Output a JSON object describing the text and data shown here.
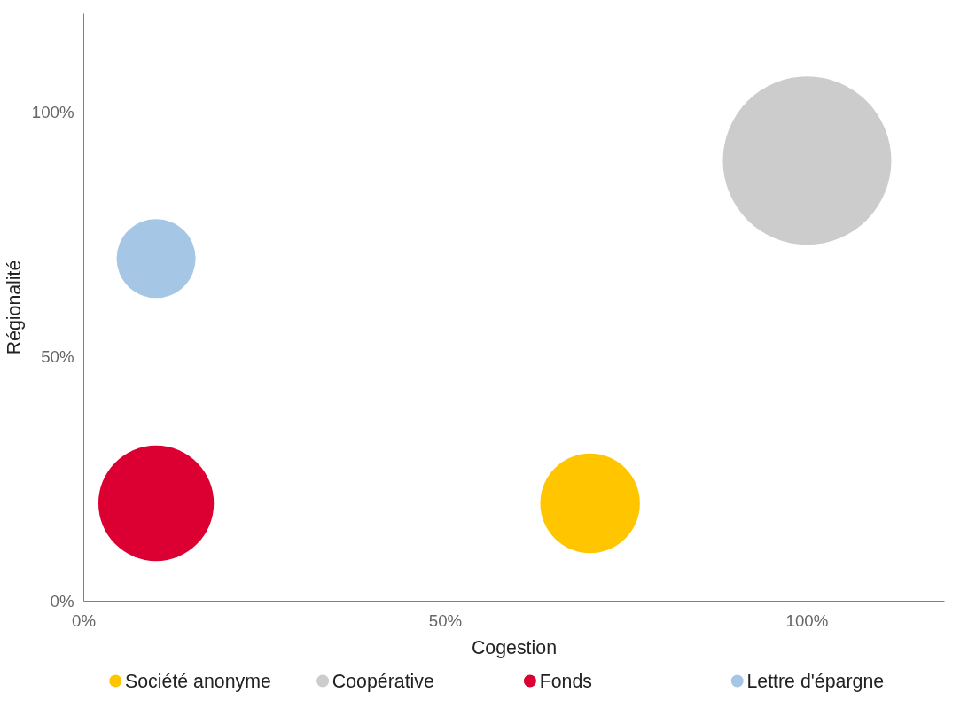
{
  "chart_data": {
    "type": "bubble",
    "xlabel": "Cogestion",
    "ylabel": "Régionalité",
    "xlim": [
      0,
      119
    ],
    "ylim": [
      0,
      120
    ],
    "xticks": [
      {
        "value": 0,
        "label": "0%"
      },
      {
        "value": 50,
        "label": "50%"
      },
      {
        "value": 100,
        "label": "100%"
      }
    ],
    "yticks": [
      {
        "value": 0,
        "label": "0%"
      },
      {
        "value": 50,
        "label": "50%"
      },
      {
        "value": 100,
        "label": "100%"
      }
    ],
    "grid": false,
    "legend": "bottom",
    "series": [
      {
        "name": "Société anonyme",
        "color": "#ffc600",
        "x": [
          70
        ],
        "values": [
          20
        ],
        "sizes": [
          0.35
        ]
      },
      {
        "name": "Coopérative",
        "color": "#cccccc",
        "x": [
          100
        ],
        "values": [
          90
        ],
        "sizes": [
          1
        ]
      },
      {
        "name": "Fonds",
        "color": "#dc0032",
        "x": [
          10
        ],
        "values": [
          20
        ],
        "sizes": [
          0.47
        ]
      },
      {
        "name": "Lettre d'épargne",
        "color": "#a6c6e6",
        "x": [
          10
        ],
        "values": [
          70
        ],
        "sizes": [
          0.22
        ]
      }
    ]
  }
}
